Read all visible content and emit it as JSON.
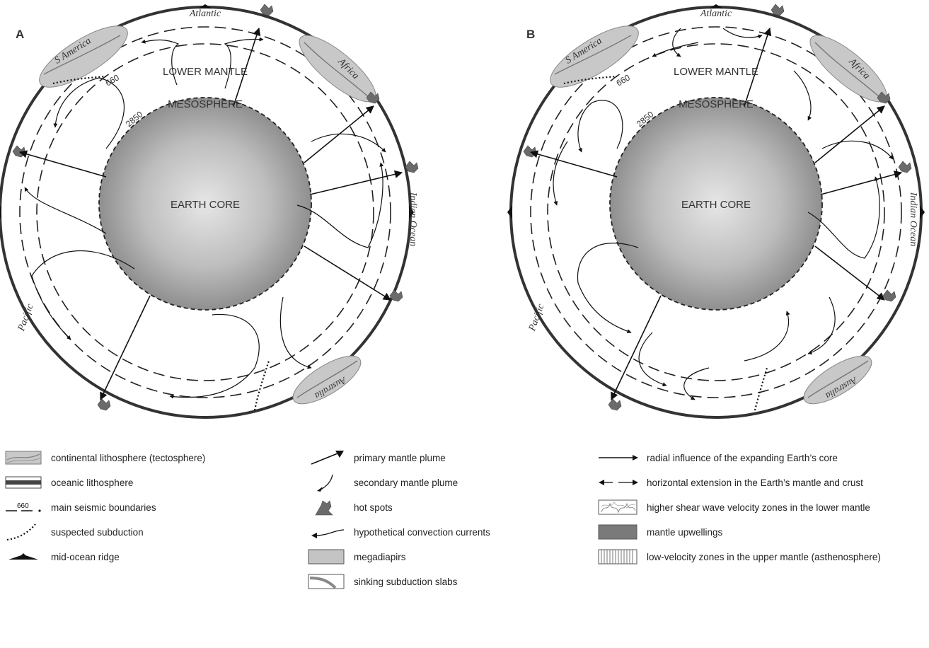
{
  "panels": [
    {
      "letter": "A",
      "oceans": {
        "atlantic": "Atlantic",
        "indian": "Indian Ocean",
        "pacific": "Pacific"
      },
      "continents": {
        "south_america": "S America",
        "africa": "Africa",
        "australia": "Australia"
      },
      "layers": {
        "lower_mantle": "LOWER MANTLE",
        "mesosphere": "MESOSPHERE",
        "core": "EARTH CORE"
      },
      "boundaries": {
        "b660": "660",
        "b2850": "2850"
      }
    },
    {
      "letter": "B",
      "oceans": {
        "atlantic": "Atlantic",
        "indian": "Indian Ocean",
        "pacific": "Pacific"
      },
      "continents": {
        "south_america": "S America",
        "africa": "Africa",
        "australia": "Australia"
      },
      "layers": {
        "lower_mantle": "LOWER MANTLE",
        "mesosphere": "MESOSPHERE",
        "core": "EARTH CORE"
      },
      "boundaries": {
        "b660": "660",
        "b2850": "2850"
      }
    }
  ],
  "legend": {
    "col1": [
      {
        "icon": "continental-lithosphere",
        "label": "continental lithosphere (tectosphere)"
      },
      {
        "icon": "oceanic-lithosphere",
        "label": "oceanic lithosphere"
      },
      {
        "icon": "seismic-boundary",
        "label": "main seismic boundaries",
        "symbol_text": "660"
      },
      {
        "icon": "suspected-subduction",
        "label": "suspected subduction"
      },
      {
        "icon": "mid-ocean-ridge",
        "label": "mid-ocean ridge"
      }
    ],
    "col2": [
      {
        "icon": "primary-plume",
        "label": "primary mantle plume"
      },
      {
        "icon": "secondary-plume",
        "label": "secondary mantle plume"
      },
      {
        "icon": "hot-spot",
        "label": "hot spots"
      },
      {
        "icon": "convection-current",
        "label": "hypothetical convection currents"
      },
      {
        "icon": "megadiapir",
        "label": "megadiapirs"
      },
      {
        "icon": "subduction-slab",
        "label": "sinking subduction slabs"
      }
    ],
    "col3": [
      {
        "icon": "radial-influence",
        "label": "radial influence of the expanding Earth’s core"
      },
      {
        "icon": "horizontal-extension",
        "label": "horizontal extension in the Earth’s mantle and crust"
      },
      {
        "icon": "shear-velocity-zone",
        "label": "higher shear wave velocity zones in the lower mantle"
      },
      {
        "icon": "mantle-upwelling",
        "label": "mantle upwellings"
      },
      {
        "icon": "low-velocity-zone",
        "label": "low-velocity zones in the upper mantle (asthenosphere)"
      }
    ]
  }
}
